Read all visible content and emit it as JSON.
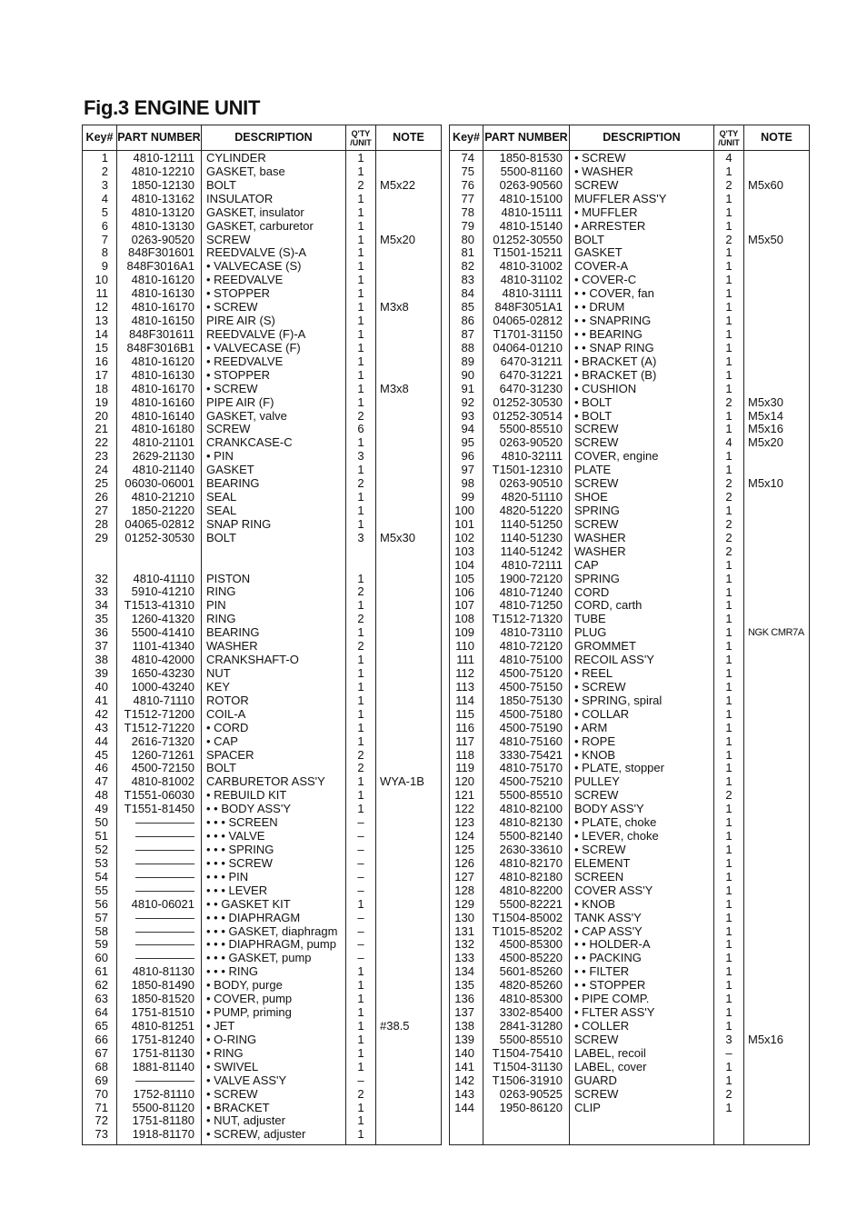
{
  "title": "Fig.3 ENGINE UNIT",
  "headers": {
    "key": "Key#",
    "part": "PART NUMBER",
    "desc": "DESCRIPTION",
    "qty_line1": "Q'TY",
    "qty_line2": "/UNIT",
    "note": "NOTE"
  },
  "left_rows": [
    [
      "1",
      "4810-12111",
      "CYLINDER",
      "1",
      ""
    ],
    [
      "2",
      "4810-12210",
      "GASKET, base",
      "1",
      ""
    ],
    [
      "3",
      "1850-12130",
      "BOLT",
      "2",
      "M5x22"
    ],
    [
      "4",
      "4810-13162",
      "INSULATOR",
      "1",
      ""
    ],
    [
      "5",
      "4810-13120",
      "GASKET, insulator",
      "1",
      ""
    ],
    [
      "6",
      "4810-13130",
      "GASKET, carburetor",
      "1",
      ""
    ],
    [
      "7",
      "0263-90520",
      "SCREW",
      "1",
      "M5x20"
    ],
    [
      "8",
      "848F301601",
      "REEDVALVE (S)-A",
      "1",
      ""
    ],
    [
      "9",
      "848F3016A1",
      "• VALVECASE (S)",
      "1",
      ""
    ],
    [
      "10",
      "4810-16120",
      "• REEDVALVE",
      "1",
      ""
    ],
    [
      "11",
      "4810-16130",
      "• STOPPER",
      "1",
      ""
    ],
    [
      "12",
      "4810-16170",
      "• SCREW",
      "1",
      "M3x8"
    ],
    [
      "13",
      "4810-16150",
      "PIRE AIR (S)",
      "1",
      ""
    ],
    [
      "14",
      "848F301611",
      "REEDVALVE (F)-A",
      "1",
      ""
    ],
    [
      "15",
      "848F3016B1",
      "• VALVECASE (F)",
      "1",
      ""
    ],
    [
      "16",
      "4810-16120",
      "• REEDVALVE",
      "1",
      ""
    ],
    [
      "17",
      "4810-16130",
      "• STOPPER",
      "1",
      ""
    ],
    [
      "18",
      "4810-16170",
      "• SCREW",
      "1",
      "M3x8"
    ],
    [
      "19",
      "4810-16160",
      "PIPE AIR (F)",
      "1",
      ""
    ],
    [
      "20",
      "4810-16140",
      "GASKET, valve",
      "2",
      ""
    ],
    [
      "21",
      "4810-16180",
      "SCREW",
      "6",
      ""
    ],
    [
      "22",
      "4810-21101",
      "CRANKCASE-C",
      "1",
      ""
    ],
    [
      "23",
      "2629-21130",
      "• PIN",
      "3",
      ""
    ],
    [
      "24",
      "4810-21140",
      "GASKET",
      "1",
      ""
    ],
    [
      "25",
      "06030-06001",
      "BEARING",
      "2",
      ""
    ],
    [
      "26",
      "4810-21210",
      "SEAL",
      "1",
      ""
    ],
    [
      "27",
      "1850-21220",
      "SEAL",
      "1",
      ""
    ],
    [
      "28",
      "04065-02812",
      "SNAP RING",
      "1",
      ""
    ],
    [
      "29",
      "01252-30530",
      "BOLT",
      "3",
      "M5x30"
    ],
    [
      "",
      "",
      "",
      "",
      ""
    ],
    [
      "",
      "",
      "",
      "",
      ""
    ],
    [
      "32",
      "4810-41110",
      "PISTON",
      "1",
      ""
    ],
    [
      "33",
      "5910-41210",
      "RING",
      "2",
      ""
    ],
    [
      "34",
      "T1513-41310",
      "PIN",
      "1",
      ""
    ],
    [
      "35",
      "1260-41320",
      "RING",
      "2",
      ""
    ],
    [
      "36",
      "5500-41410",
      "BEARING",
      "1",
      ""
    ],
    [
      "37",
      "1101-41340",
      "WASHER",
      "2",
      ""
    ],
    [
      "38",
      "4810-42000",
      "CRANKSHAFT-O",
      "1",
      ""
    ],
    [
      "39",
      "1650-43230",
      "NUT",
      "1",
      ""
    ],
    [
      "40",
      "1000-43240",
      "KEY",
      "1",
      ""
    ],
    [
      "41",
      "4810-71110",
      "ROTOR",
      "1",
      ""
    ],
    [
      "42",
      "T1512-71200",
      "COIL-A",
      "1",
      ""
    ],
    [
      "43",
      "T1512-71220",
      "• CORD",
      "1",
      ""
    ],
    [
      "44",
      "2616-71320",
      "• CAP",
      "1",
      ""
    ],
    [
      "45",
      "1260-71261",
      "SPACER",
      "2",
      ""
    ],
    [
      "46",
      "4500-72150",
      "BOLT",
      "2",
      ""
    ],
    [
      "47",
      "4810-81002",
      "CARBURETOR ASS'Y",
      "1",
      "WYA-1B"
    ],
    [
      "48",
      "T1551-06030",
      "• REBUILD KIT",
      "1",
      ""
    ],
    [
      "49",
      "T1551-81450",
      "• • BODY ASS'Y",
      "1",
      ""
    ],
    [
      "50",
      "—————",
      "• • • SCREEN",
      "–",
      ""
    ],
    [
      "51",
      "—————",
      "• • • VALVE",
      "–",
      ""
    ],
    [
      "52",
      "—————",
      "• • • SPRING",
      "–",
      ""
    ],
    [
      "53",
      "—————",
      "• • • SCREW",
      "–",
      ""
    ],
    [
      "54",
      "—————",
      "• • • PIN",
      "–",
      ""
    ],
    [
      "55",
      "—————",
      "• • • LEVER",
      "–",
      ""
    ],
    [
      "56",
      "4810-06021",
      "• • GASKET KIT",
      "1",
      ""
    ],
    [
      "57",
      "—————",
      "• • • DIAPHRAGM",
      "–",
      ""
    ],
    [
      "58",
      "—————",
      "• • • GASKET, diaphragm",
      "–",
      ""
    ],
    [
      "59",
      "—————",
      "• • • DIAPHRAGM, pump",
      "–",
      ""
    ],
    [
      "60",
      "—————",
      "• • • GASKET, pump",
      "–",
      ""
    ],
    [
      "61",
      "4810-81130",
      "• • • RING",
      "1",
      ""
    ],
    [
      "62",
      "1850-81490",
      "• BODY, purge",
      "1",
      ""
    ],
    [
      "63",
      "1850-81520",
      "• COVER, pump",
      "1",
      ""
    ],
    [
      "64",
      "1751-81510",
      "• PUMP, priming",
      "1",
      ""
    ],
    [
      "65",
      "4810-81251",
      "• JET",
      "1",
      "#38.5"
    ],
    [
      "66",
      "1751-81240",
      "• O-RING",
      "1",
      ""
    ],
    [
      "67",
      "1751-81130",
      "• RING",
      "1",
      ""
    ],
    [
      "68",
      "1881-81140",
      "• SWIVEL",
      "1",
      ""
    ],
    [
      "69",
      "—————",
      "• VALVE ASS'Y",
      "–",
      ""
    ],
    [
      "70",
      "1752-81110",
      "• SCREW",
      "2",
      ""
    ],
    [
      "71",
      "5500-81120",
      "• BRACKET",
      "1",
      ""
    ],
    [
      "72",
      "1751-81180",
      "• NUT, adjuster",
      "1",
      ""
    ],
    [
      "73",
      "1918-81170",
      "• SCREW, adjuster",
      "1",
      ""
    ]
  ],
  "right_rows": [
    [
      "74",
      "1850-81530",
      "• SCREW",
      "4",
      ""
    ],
    [
      "75",
      "5500-81160",
      "• WASHER",
      "1",
      ""
    ],
    [
      "76",
      "0263-90560",
      "SCREW",
      "2",
      "M5x60"
    ],
    [
      "77",
      "4810-15100",
      "MUFFLER ASS'Y",
      "1",
      ""
    ],
    [
      "78",
      "4810-15111",
      "• MUFFLER",
      "1",
      ""
    ],
    [
      "79",
      "4810-15140",
      "• ARRESTER",
      "1",
      ""
    ],
    [
      "80",
      "01252-30550",
      "BOLT",
      "2",
      "M5x50"
    ],
    [
      "81",
      "T1501-15211",
      "GASKET",
      "1",
      ""
    ],
    [
      "82",
      "4810-31002",
      "COVER-A",
      "1",
      ""
    ],
    [
      "83",
      "4810-31102",
      "• COVER-C",
      "1",
      ""
    ],
    [
      "84",
      "4810-31111",
      "• • COVER, fan",
      "1",
      ""
    ],
    [
      "85",
      "848F3051A1",
      "• • DRUM",
      "1",
      ""
    ],
    [
      "86",
      "04065-02812",
      "• • SNAPRING",
      "1",
      ""
    ],
    [
      "87",
      "T1701-31150",
      "• • BEARING",
      "1",
      ""
    ],
    [
      "88",
      "04064-01210",
      "• • SNAP RING",
      "1",
      ""
    ],
    [
      "89",
      "6470-31211",
      "• BRACKET (A)",
      "1",
      ""
    ],
    [
      "90",
      "6470-31221",
      "• BRACKET (B)",
      "1",
      ""
    ],
    [
      "91",
      "6470-31230",
      "• CUSHION",
      "1",
      ""
    ],
    [
      "92",
      "01252-30530",
      "• BOLT",
      "2",
      "M5x30"
    ],
    [
      "93",
      "01252-30514",
      "• BOLT",
      "1",
      "M5x14"
    ],
    [
      "94",
      "5500-85510",
      "SCREW",
      "1",
      "M5x16"
    ],
    [
      "95",
      "0263-90520",
      "SCREW",
      "4",
      "M5x20"
    ],
    [
      "96",
      "4810-32111",
      "COVER, engine",
      "1",
      ""
    ],
    [
      "97",
      "T1501-12310",
      "PLATE",
      "1",
      ""
    ],
    [
      "98",
      "0263-90510",
      "SCREW",
      "2",
      "M5x10"
    ],
    [
      "99",
      "4820-51110",
      "SHOE",
      "2",
      ""
    ],
    [
      "100",
      "4820-51220",
      "SPRING",
      "1",
      ""
    ],
    [
      "101",
      "1140-51250",
      "SCREW",
      "2",
      ""
    ],
    [
      "102",
      "1140-51230",
      "WASHER",
      "2",
      ""
    ],
    [
      "103",
      "1140-51242",
      "WASHER",
      "2",
      ""
    ],
    [
      "104",
      "4810-72111",
      "CAP",
      "1",
      ""
    ],
    [
      "105",
      "1900-72120",
      "SPRING",
      "1",
      ""
    ],
    [
      "106",
      "4810-71240",
      "CORD",
      "1",
      ""
    ],
    [
      "107",
      "4810-71250",
      "CORD, carth",
      "1",
      ""
    ],
    [
      "108",
      "T1512-71320",
      "TUBE",
      "1",
      ""
    ],
    [
      "109",
      "4810-73110",
      "PLUG",
      "1",
      "NGK CMR7A"
    ],
    [
      "110",
      "4810-72120",
      "GROMMET",
      "1",
      ""
    ],
    [
      "111",
      "4810-75100",
      "RECOIL ASS'Y",
      "1",
      ""
    ],
    [
      "112",
      "4500-75120",
      "• REEL",
      "1",
      ""
    ],
    [
      "113",
      "4500-75150",
      "• SCREW",
      "1",
      ""
    ],
    [
      "114",
      "1850-75130",
      "• SPRING, spiral",
      "1",
      ""
    ],
    [
      "115",
      "4500-75180",
      "• COLLAR",
      "1",
      ""
    ],
    [
      "116",
      "4500-75190",
      "• ARM",
      "1",
      ""
    ],
    [
      "117",
      "4810-75160",
      "• ROPE",
      "1",
      ""
    ],
    [
      "118",
      "3330-75421",
      "• KNOB",
      "1",
      ""
    ],
    [
      "119",
      "4810-75170",
      "• PLATE, stopper",
      "1",
      ""
    ],
    [
      "120",
      "4500-75210",
      "PULLEY",
      "1",
      ""
    ],
    [
      "121",
      "5500-85510",
      "SCREW",
      "2",
      ""
    ],
    [
      "122",
      "4810-82100",
      "BODY ASS'Y",
      "1",
      ""
    ],
    [
      "123",
      "4810-82130",
      "• PLATE, choke",
      "1",
      ""
    ],
    [
      "124",
      "5500-82140",
      "• LEVER, choke",
      "1",
      ""
    ],
    [
      "125",
      "2630-33610",
      "• SCREW",
      "1",
      ""
    ],
    [
      "126",
      "4810-82170",
      "ELEMENT",
      "1",
      ""
    ],
    [
      "127",
      "4810-82180",
      "SCREEN",
      "1",
      ""
    ],
    [
      "128",
      "4810-82200",
      "COVER ASS'Y",
      "1",
      ""
    ],
    [
      "129",
      "5500-82221",
      "• KNOB",
      "1",
      ""
    ],
    [
      "130",
      "T1504-85002",
      "TANK ASS'Y",
      "1",
      ""
    ],
    [
      "131",
      "T1015-85202",
      "• CAP ASS'Y",
      "1",
      ""
    ],
    [
      "132",
      "4500-85300",
      "• • HOLDER-A",
      "1",
      ""
    ],
    [
      "133",
      "4500-85220",
      "• • PACKING",
      "1",
      ""
    ],
    [
      "134",
      "5601-85260",
      "• • FILTER",
      "1",
      ""
    ],
    [
      "135",
      "4820-85260",
      "• • STOPPER",
      "1",
      ""
    ],
    [
      "136",
      "4810-85300",
      "• PIPE COMP.",
      "1",
      ""
    ],
    [
      "137",
      "3302-85400",
      "• FLTER ASS'Y",
      "1",
      ""
    ],
    [
      "138",
      "2841-31280",
      "• COLLER",
      "1",
      ""
    ],
    [
      "139",
      "5500-85510",
      "SCREW",
      "3",
      "M5x16"
    ],
    [
      "140",
      "T1504-75410",
      "LABEL, recoil",
      "–",
      ""
    ],
    [
      "141",
      "T1504-31130",
      "LABEL, cover",
      "1",
      ""
    ],
    [
      "142",
      "T1506-31910",
      "GUARD",
      "1",
      ""
    ],
    [
      "143",
      "0263-90525",
      "SCREW",
      "2",
      ""
    ],
    [
      "144",
      "1950-86120",
      "CLIP",
      "1",
      ""
    ]
  ]
}
